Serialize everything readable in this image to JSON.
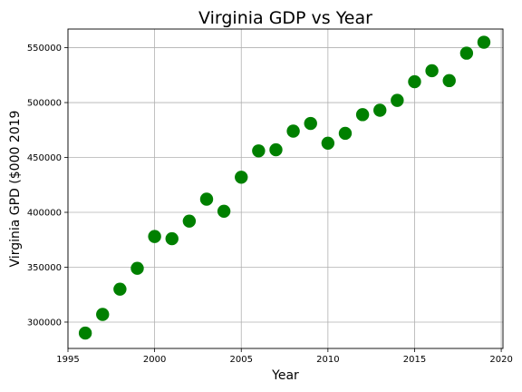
{
  "chart_data": {
    "type": "scatter",
    "title": "Virginia GDP vs Year",
    "xlabel": "Year",
    "ylabel": "Virginia GPD ($000 2019",
    "xlim": [
      1995.0,
      2020.1
    ],
    "ylim": [
      276000,
      567000
    ],
    "xticks": [
      1995,
      2000,
      2005,
      2010,
      2015,
      2020
    ],
    "yticks": [
      300000,
      350000,
      400000,
      450000,
      500000,
      550000
    ],
    "grid": true,
    "color": "#008000",
    "series": [
      {
        "x": [
          1996,
          1997,
          1998,
          1999,
          2000,
          2001,
          2002,
          2003,
          2004,
          2005,
          2006,
          2007,
          2008,
          2009,
          2010,
          2011,
          2012,
          2013,
          2014,
          2015,
          2016,
          2017,
          2018,
          2019
        ],
        "y": [
          290000,
          307000,
          330000,
          349000,
          378000,
          376000,
          392000,
          412000,
          401000,
          432000,
          456000,
          457000,
          474000,
          481000,
          463000,
          472000,
          489000,
          493000,
          502000,
          519000,
          529000,
          520000,
          545000,
          555000
        ]
      }
    ]
  }
}
